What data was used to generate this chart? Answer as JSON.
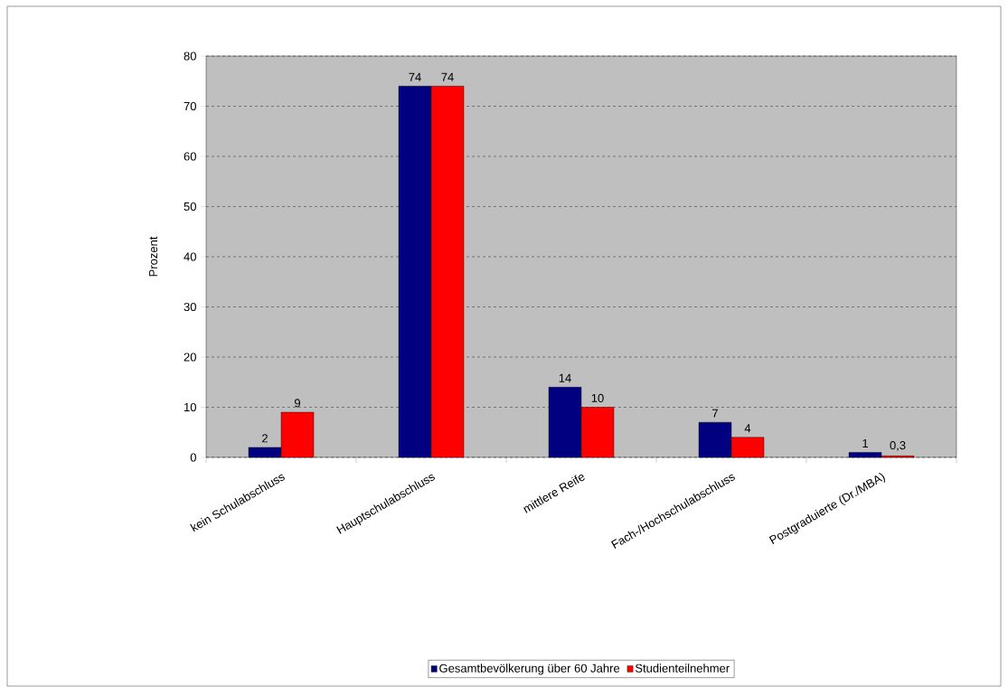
{
  "chart_data": {
    "type": "bar",
    "ylabel": "Prozent",
    "categories": [
      "kein Schulabschluss",
      "Hauptschulabschluss",
      "mittlere Reife",
      "Fach-/Hochschulabschluss",
      "Postgraduierte (Dr./MBA)"
    ],
    "series": [
      {
        "name": "Gesamtbevölkerung über 60 Jahre",
        "color": "#000080",
        "values": [
          2,
          74,
          14,
          7,
          1
        ],
        "value_labels": [
          "2",
          "74",
          "14",
          "7",
          "1"
        ]
      },
      {
        "name": "Studienteilnehmer",
        "color": "#ff0000",
        "values": [
          9,
          74,
          10,
          4,
          0.3
        ],
        "value_labels": [
          "9",
          "74",
          "10",
          "4",
          "0,3"
        ]
      }
    ],
    "ylim": [
      0,
      80
    ],
    "yticks": [
      0,
      10,
      20,
      30,
      40,
      50,
      60,
      70,
      80
    ],
    "grid": "y",
    "legend": "bottom"
  }
}
